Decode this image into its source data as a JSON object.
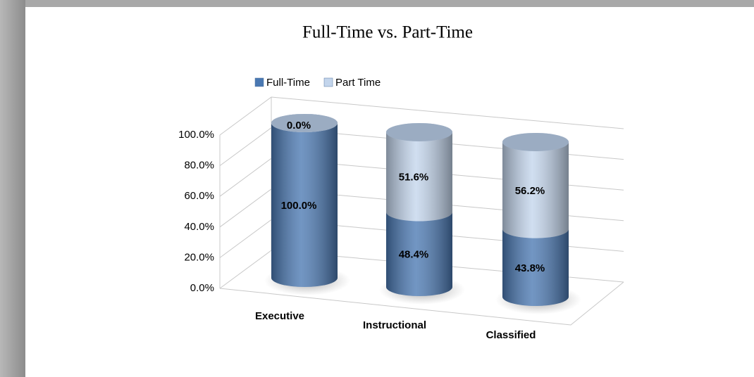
{
  "chart_data": {
    "type": "bar3d",
    "stacked": true,
    "title": "Full-Time vs. Part-Time",
    "categories": [
      "Executive",
      "Instructional",
      "Classified"
    ],
    "series": [
      {
        "name": "Full-Time",
        "color": "#4a78b2",
        "values": [
          100.0,
          48.4,
          43.8
        ],
        "value_labels": [
          "100.0%",
          "48.4%",
          "43.8%"
        ]
      },
      {
        "name": "Part Time",
        "color": "#c3d5ec",
        "values": [
          0.0,
          51.6,
          56.2
        ],
        "value_labels": [
          "0.0%",
          "51.6%",
          "56.2%"
        ]
      }
    ],
    "ylim": [
      0,
      100
    ],
    "yticks": [
      {
        "value": 0,
        "label": "0.0%"
      },
      {
        "value": 20,
        "label": "20.0%"
      },
      {
        "value": 40,
        "label": "40.0%"
      },
      {
        "value": 60,
        "label": "60.0%"
      },
      {
        "value": 80,
        "label": "80.0%"
      },
      {
        "value": 100,
        "label": "100.0%"
      }
    ],
    "grid": true,
    "legend": "top"
  }
}
